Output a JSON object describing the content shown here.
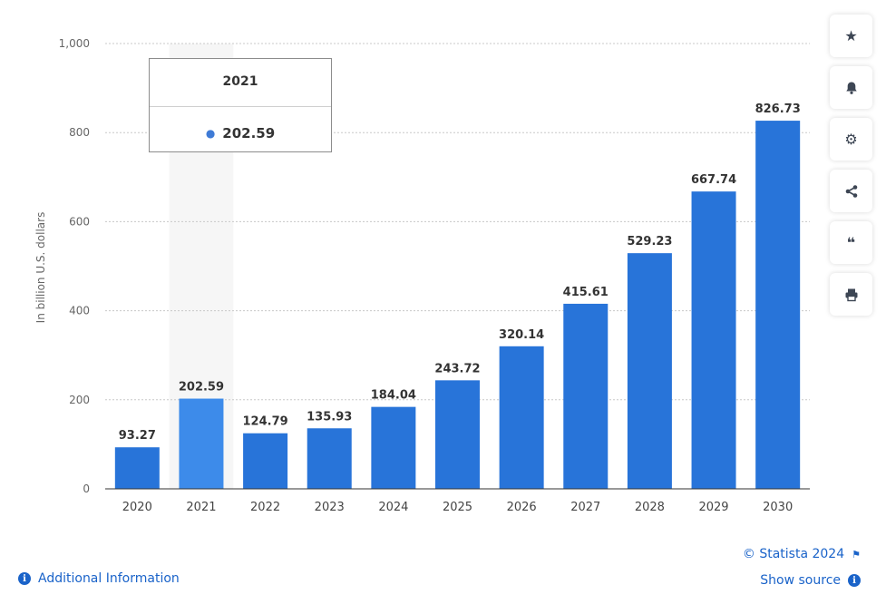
{
  "chart_data": {
    "type": "bar",
    "title": "",
    "xlabel": "",
    "ylabel": "In billion U.S. dollars",
    "categories": [
      "2020",
      "2021",
      "2022",
      "2023",
      "2024",
      "2025",
      "2026",
      "2027",
      "2028",
      "2029",
      "2030"
    ],
    "values": [
      93.27,
      202.59,
      124.79,
      135.93,
      184.04,
      243.72,
      320.14,
      415.61,
      529.23,
      667.74,
      826.73
    ],
    "value_labels": [
      "93.27",
      "202.59",
      "124.79",
      "135.93",
      "184.04",
      "243.72",
      "320.14",
      "415.61",
      "529.23",
      "667.74",
      "826.73"
    ],
    "ylim": [
      0,
      1000
    ],
    "yticks": [
      0,
      200,
      400,
      600,
      800,
      1000
    ],
    "ytick_labels": [
      "0",
      "200",
      "400",
      "600",
      "800",
      "1,000"
    ],
    "grid": true,
    "highlighted_category": "2021",
    "colors": {
      "bar": "#2874d9",
      "bar_highlight": "#3d8bea",
      "highlight_band": "#f6f6f6",
      "grid": "#c8c8c8",
      "axis": "#333333"
    }
  },
  "tooltip": {
    "title": "2021",
    "value": "202.59"
  },
  "side_buttons": [
    {
      "icon": "star-icon",
      "glyph": "★"
    },
    {
      "icon": "bell-icon",
      "glyph": "🔔"
    },
    {
      "icon": "gear-icon",
      "glyph": "⚙"
    },
    {
      "icon": "share-icon",
      "glyph": "⋖"
    },
    {
      "icon": "quote-icon",
      "glyph": "❝"
    },
    {
      "icon": "print-icon",
      "glyph": "⎙"
    }
  ],
  "footer": {
    "additional_info": "Additional Information",
    "credit": "© Statista 2024",
    "show_source": "Show source"
  }
}
